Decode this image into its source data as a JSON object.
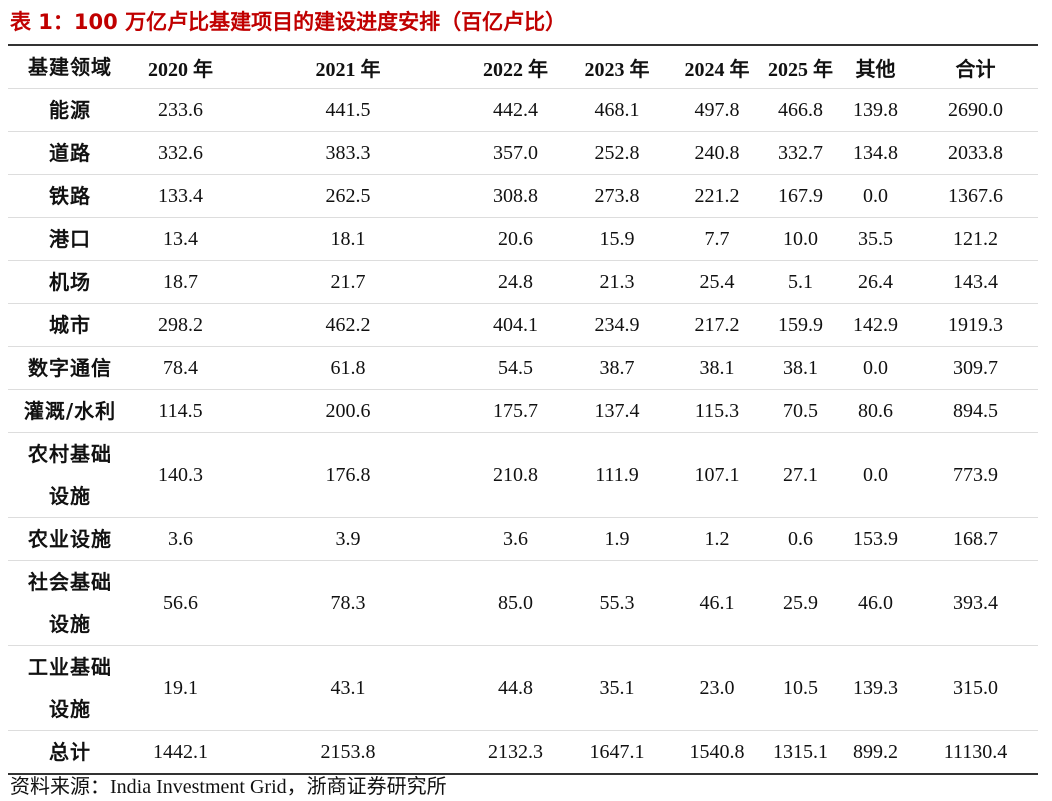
{
  "title": "表 1：100 万亿卢比基建项目的建设进度安排（百亿卢比）",
  "table": {
    "header": [
      "基建领域",
      "2020 年",
      "2021 年",
      "2022 年",
      "2023 年",
      "2024 年",
      "2025 年",
      "其他",
      "合计"
    ],
    "rows": [
      [
        "能源",
        "233.6",
        "441.5",
        "442.4",
        "468.1",
        "497.8",
        "466.8",
        "139.8",
        "2690.0"
      ],
      [
        "道路",
        "332.6",
        "383.3",
        "357.0",
        "252.8",
        "240.8",
        "332.7",
        "134.8",
        "2033.8"
      ],
      [
        "铁路",
        "133.4",
        "262.5",
        "308.8",
        "273.8",
        "221.2",
        "167.9",
        "0.0",
        "1367.6"
      ],
      [
        "港口",
        "13.4",
        "18.1",
        "20.6",
        "15.9",
        "7.7",
        "10.0",
        "35.5",
        "121.2"
      ],
      [
        "机场",
        "18.7",
        "21.7",
        "24.8",
        "21.3",
        "25.4",
        "5.1",
        "26.4",
        "143.4"
      ],
      [
        "城市",
        "298.2",
        "462.2",
        "404.1",
        "234.9",
        "217.2",
        "159.9",
        "142.9",
        "1919.3"
      ],
      [
        "数字通信",
        "78.4",
        "61.8",
        "54.5",
        "38.7",
        "38.1",
        "38.1",
        "0.0",
        "309.7"
      ],
      [
        "灌溉/水利",
        "114.5",
        "200.6",
        "175.7",
        "137.4",
        "115.3",
        "70.5",
        "80.6",
        "894.5"
      ],
      [
        "农村基础设施",
        "140.3",
        "176.8",
        "210.8",
        "111.9",
        "107.1",
        "27.1",
        "0.0",
        "773.9"
      ],
      [
        "农业设施",
        "3.6",
        "3.9",
        "3.6",
        "1.9",
        "1.2",
        "0.6",
        "153.9",
        "168.7"
      ],
      [
        "社会基础设施",
        "56.6",
        "78.3",
        "85.0",
        "55.3",
        "46.1",
        "25.9",
        "46.0",
        "393.4"
      ],
      [
        "工业基础设施",
        "19.1",
        "43.1",
        "44.8",
        "35.1",
        "23.0",
        "10.5",
        "139.3",
        "315.0"
      ],
      [
        "总计",
        "1442.1",
        "2153.8",
        "2132.3",
        "1647.1",
        "1540.8",
        "1315.1",
        "899.2",
        "11130.4"
      ]
    ]
  },
  "source": "资料来源：India Investment Grid，浙商证券研究所"
}
